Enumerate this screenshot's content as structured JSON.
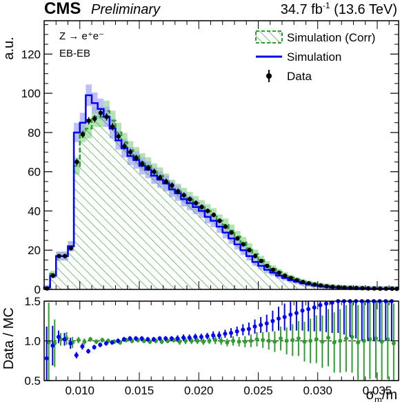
{
  "header": {
    "experiment": "CMS",
    "status": "Preliminary",
    "lumi": "34.7 fb",
    "lumi_exp": "-1",
    "energy": " (13.6 TeV)"
  },
  "annotations": {
    "process": "Z → e⁺e⁻",
    "category": "EB-EB"
  },
  "chart_data": [
    {
      "type": "bar",
      "panel": "main",
      "ylabel": "a.u.",
      "xlim": [
        0.007,
        0.0368
      ],
      "ylim": [
        0,
        137
      ],
      "yticks": [
        0,
        20,
        40,
        60,
        80,
        100,
        120
      ],
      "bin_edges": [
        0.007,
        0.0075,
        0.008,
        0.0085,
        0.009,
        0.0095,
        0.01,
        0.0105,
        0.011,
        0.0115,
        0.012,
        0.0125,
        0.013,
        0.0135,
        0.014,
        0.0145,
        0.015,
        0.0155,
        0.016,
        0.0165,
        0.017,
        0.0175,
        0.018,
        0.0185,
        0.019,
        0.0195,
        0.02,
        0.0205,
        0.021,
        0.0215,
        0.022,
        0.0225,
        0.023,
        0.0235,
        0.024,
        0.0245,
        0.025,
        0.0255,
        0.026,
        0.0265,
        0.027,
        0.0275,
        0.028,
        0.0285,
        0.029,
        0.0295,
        0.03,
        0.0305,
        0.031,
        0.0315,
        0.032,
        0.0325,
        0.033,
        0.0335,
        0.034,
        0.0345,
        0.035,
        0.0355,
        0.036,
        0.0365,
        0.0368
      ],
      "legend_position": "top-right",
      "series": [
        {
          "name": "Simulation (Corr)",
          "style": "hatched",
          "color": "#2ca02c",
          "values": [
            1,
            8,
            17,
            17,
            22,
            63,
            80,
            82,
            88,
            88,
            91,
            86,
            80,
            75,
            71,
            68,
            65,
            63,
            60,
            58,
            55,
            52,
            50,
            48,
            46,
            44,
            42,
            40,
            38,
            35,
            33,
            30,
            27,
            24,
            21,
            18,
            15,
            12.5,
            10.5,
            8.8,
            7.4,
            6.1,
            5.0,
            4.0,
            3.3,
            2.7,
            2.2,
            1.8,
            1.5,
            1.3,
            1.1,
            1.0,
            0.9,
            0.8,
            0.7,
            0.6,
            0.5,
            0.5,
            0.5,
            0.4,
            2
          ]
        },
        {
          "name": "Simulation",
          "style": "step",
          "color": "#0000ff",
          "values": [
            1,
            7,
            17,
            17,
            22,
            80,
            85,
            99,
            95,
            92,
            88,
            82,
            76,
            72,
            68,
            66,
            63,
            61,
            58,
            56,
            54,
            51,
            49,
            46,
            44,
            42,
            40,
            37,
            35,
            32,
            29,
            26,
            23,
            20,
            17,
            14,
            12,
            10,
            8.5,
            7.0,
            5.8,
            4.7,
            3.9,
            3.1,
            2.5,
            2.0,
            1.6,
            1.3,
            1.1,
            0.9,
            0.8,
            0.7,
            0.6,
            0.6,
            0.5,
            0.4,
            0.4,
            0.4,
            0.3,
            0.3,
            3
          ]
        },
        {
          "name": "Data",
          "style": "points",
          "color": "#000000",
          "values": [
            0.5,
            7,
            17,
            17,
            21,
            65,
            79,
            86,
            87,
            90,
            88,
            83,
            78,
            73,
            70,
            67,
            64,
            62,
            60,
            57,
            55,
            53,
            50,
            48,
            46,
            44,
            42,
            40,
            38,
            35,
            32,
            29,
            26,
            23,
            20,
            17,
            14.5,
            12,
            10,
            8.5,
            7,
            5.8,
            4.7,
            3.8,
            3.1,
            2.5,
            2.0,
            1.6,
            1.3,
            1.1,
            0.9,
            0.8,
            0.7,
            0.6,
            0.5,
            0.5,
            0.4,
            0.4,
            0.4,
            0.3,
            2
          ]
        }
      ]
    },
    {
      "type": "scatter",
      "panel": "ratio",
      "xlabel": "σm/m",
      "ylabel": "Data / MC",
      "xlim": [
        0.007,
        0.0368
      ],
      "ylim": [
        0.5,
        1.5
      ],
      "yticks": [
        0.5,
        1.0,
        1.5
      ],
      "xticks": [
        0.01,
        0.015,
        0.02,
        0.025,
        0.03,
        0.035
      ],
      "reference_line": 1.0,
      "series": [
        {
          "name": "Data / Simulation (Corr)",
          "color": "#2ca02c",
          "x": [
            0.0073,
            0.0078,
            0.0083,
            0.0088,
            0.0093,
            0.0098,
            0.0103,
            0.0108,
            0.0113,
            0.0118,
            0.0123,
            0.0128,
            0.0133,
            0.0138,
            0.0143,
            0.0148,
            0.0153,
            0.0158,
            0.0163,
            0.0168,
            0.0173,
            0.0178,
            0.0183,
            0.0188,
            0.0193,
            0.0198,
            0.0203,
            0.0208,
            0.0213,
            0.0218,
            0.0223,
            0.0228,
            0.0233,
            0.0238,
            0.0243,
            0.0248,
            0.0253,
            0.0258,
            0.0263,
            0.0268,
            0.0273,
            0.0278,
            0.0283,
            0.0288,
            0.0293,
            0.0298,
            0.0303,
            0.0308,
            0.0313,
            0.0318,
            0.0323,
            0.0328,
            0.0333,
            0.0338,
            0.0343,
            0.0348,
            0.0353,
            0.0358,
            0.0363
          ],
          "y": [
            0.98,
            0.97,
            1.02,
            1.03,
            0.98,
            1.01,
            0.99,
            1.02,
            0.99,
            1.01,
            1.0,
            0.99,
            0.98,
            1.01,
            1.0,
            1.01,
            1.0,
            0.99,
            1.0,
            0.99,
            1.0,
            1.01,
            0.99,
            1.0,
            1.0,
            1.0,
            0.99,
            1.0,
            1.01,
            1.0,
            0.98,
            1.0,
            0.99,
            0.99,
            1.0,
            1.02,
            1.01,
            1.0,
            0.99,
            1.03,
            1.0,
            1.01,
            1.03,
            0.99,
            1.0,
            1.02,
            0.99,
            1.04,
            0.98,
            1.0,
            1.03,
            1.05,
            0.98,
            1.0,
            1.02,
            1.03,
            0.99,
            1.02,
            0.97
          ],
          "yerr": [
            0.5,
            0.3,
            0.08,
            0.08,
            0.07,
            0.04,
            0.04,
            0.03,
            0.03,
            0.03,
            0.03,
            0.03,
            0.03,
            0.03,
            0.03,
            0.03,
            0.03,
            0.03,
            0.03,
            0.03,
            0.03,
            0.03,
            0.04,
            0.04,
            0.04,
            0.04,
            0.04,
            0.04,
            0.05,
            0.05,
            0.05,
            0.06,
            0.06,
            0.07,
            0.08,
            0.09,
            0.1,
            0.11,
            0.13,
            0.15,
            0.17,
            0.2,
            0.22,
            0.25,
            0.28,
            0.3,
            0.33,
            0.36,
            0.38,
            0.4,
            0.42,
            0.45,
            0.47,
            0.5,
            0.5,
            0.5,
            0.5,
            0.5,
            0.5
          ]
        },
        {
          "name": "Data / Simulation",
          "color": "#0000ff",
          "x": [
            0.0073,
            0.0078,
            0.0083,
            0.0088,
            0.0093,
            0.0098,
            0.0103,
            0.0108,
            0.0113,
            0.0118,
            0.0123,
            0.0128,
            0.0133,
            0.0138,
            0.0143,
            0.0148,
            0.0153,
            0.0158,
            0.0163,
            0.0168,
            0.0173,
            0.0178,
            0.0183,
            0.0188,
            0.0193,
            0.0198,
            0.0203,
            0.0208,
            0.0213,
            0.0218,
            0.0223,
            0.0228,
            0.0233,
            0.0238,
            0.0243,
            0.0248,
            0.0253,
            0.0258,
            0.0263,
            0.0268,
            0.0273,
            0.0278,
            0.0283,
            0.0288,
            0.0293,
            0.0298,
            0.0303,
            0.0308,
            0.0313,
            0.0318,
            0.0323,
            0.0328,
            0.0333,
            0.0338,
            0.0343,
            0.0348,
            0.0353,
            0.0358,
            0.0363
          ],
          "y": [
            0.78,
            0.94,
            1.05,
            1.02,
            0.97,
            0.82,
            0.93,
            0.87,
            0.92,
            0.95,
            0.97,
            0.98,
            1.0,
            1.02,
            1.03,
            1.03,
            1.03,
            1.02,
            1.02,
            1.03,
            1.03,
            1.03,
            1.03,
            1.04,
            1.04,
            1.05,
            1.05,
            1.06,
            1.07,
            1.07,
            1.09,
            1.1,
            1.12,
            1.14,
            1.15,
            1.18,
            1.2,
            1.22,
            1.25,
            1.28,
            1.3,
            1.33,
            1.35,
            1.38,
            1.4,
            1.42,
            1.45,
            1.47,
            1.48,
            1.5,
            1.5,
            1.5,
            1.5,
            1.5,
            1.5,
            1.5,
            1.5,
            1.5,
            1.5
          ],
          "yerr": [
            0.4,
            0.25,
            0.08,
            0.08,
            0.07,
            0.04,
            0.04,
            0.03,
            0.03,
            0.03,
            0.03,
            0.03,
            0.03,
            0.03,
            0.03,
            0.03,
            0.03,
            0.03,
            0.03,
            0.03,
            0.03,
            0.03,
            0.04,
            0.04,
            0.04,
            0.04,
            0.04,
            0.04,
            0.05,
            0.05,
            0.05,
            0.06,
            0.06,
            0.07,
            0.08,
            0.09,
            0.1,
            0.11,
            0.13,
            0.15,
            0.17,
            0.2,
            0.22,
            0.25,
            0.28,
            0.3,
            0.33,
            0.36,
            0.38,
            0.4,
            0.42,
            0.45,
            0.47,
            0.5,
            0.5,
            0.5,
            0.5,
            0.5,
            0.5
          ]
        }
      ]
    }
  ],
  "colors": {
    "corr": "#2ca02c",
    "corr_band": "#9ad99a",
    "sim": "#0000ff",
    "sim_band": "#a9a9f5",
    "data": "#000000"
  }
}
